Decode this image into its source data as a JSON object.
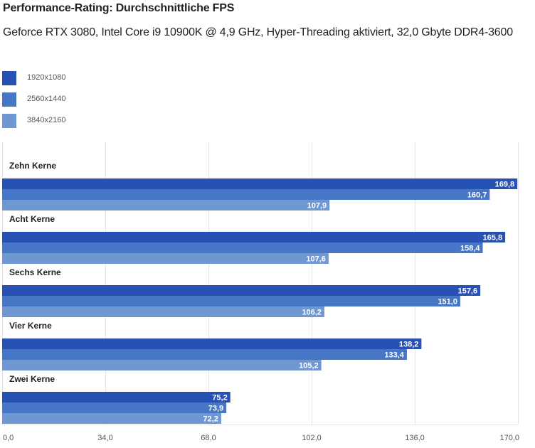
{
  "chart_data": {
    "type": "bar",
    "orientation": "horizontal",
    "title": "Performance-Rating: Durchschnittliche FPS",
    "subtitle": "Geforce RTX 3080, Intel Core i9 10900K @ 4,9 GHz, Hyper-Threading aktiviert, 32,0 Gbyte DDR4-3600",
    "categories": [
      "Zehn Kerne",
      "Acht Kerne",
      "Sechs Kerne",
      "Vier Kerne",
      "Zwei Kerne"
    ],
    "series": [
      {
        "name": "1920x1080",
        "color": "#2851b4",
        "values": [
          169.8,
          165.8,
          157.6,
          138.2,
          75.2
        ],
        "labels": [
          "169,8",
          "165,8",
          "157,6",
          "138,2",
          "75,2"
        ]
      },
      {
        "name": "2560x1440",
        "color": "#4677c6",
        "values": [
          160.7,
          158.4,
          151.0,
          133.4,
          73.9
        ],
        "labels": [
          "160,7",
          "158,4",
          "151,0",
          "133,4",
          "73,9"
        ]
      },
      {
        "name": "3840x2160",
        "color": "#6f98d3",
        "values": [
          107.9,
          107.6,
          106.2,
          105.2,
          72.2
        ],
        "labels": [
          "107,9",
          "107,6",
          "106,2",
          "105,2",
          "72,2"
        ]
      }
    ],
    "xlim": [
      0,
      170
    ],
    "xticks": [
      0,
      34,
      68,
      102,
      136,
      170
    ],
    "xtick_labels": [
      "0,0",
      "34,0",
      "68,0",
      "102,0",
      "136,0",
      "170,0"
    ],
    "xlabel": "",
    "ylabel": "",
    "grid": true,
    "legend_position": "top-left"
  }
}
